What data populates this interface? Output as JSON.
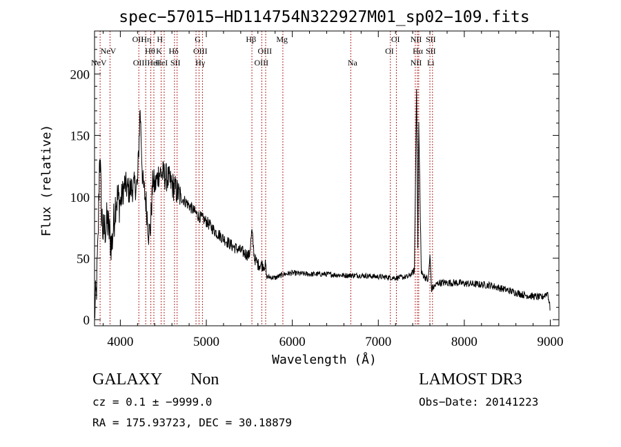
{
  "chart_data": {
    "type": "line",
    "title": "spec−57015−HD114754N322927M01_sp02−109.fits",
    "xlabel": "Wavelength (Å)",
    "ylabel": "Flux (relative)",
    "xlim": [
      3700,
      9100
    ],
    "ylim": [
      -5,
      235
    ],
    "xticks": [
      4000,
      5000,
      6000,
      7000,
      8000,
      9000
    ],
    "yticks": [
      0,
      50,
      100,
      150,
      200
    ],
    "colors": {
      "spectrum": "#000000",
      "lines": "#b22222",
      "frame": "#000000"
    },
    "spectral_lines": [
      {
        "label": "NeV",
        "wavelength": 3750,
        "row": 3
      },
      {
        "label": "NeV",
        "wavelength": 3860,
        "row": 2
      },
      {
        "label": "OII",
        "wavelength": 4205,
        "row": 1
      },
      {
        "label": "OIII",
        "wavelength": 4230,
        "row": 4
      },
      {
        "label": "Hη",
        "wavelength": 4300,
        "row": 1
      },
      {
        "label": "Hθ",
        "wavelength": 4345,
        "row": 2
      },
      {
        "label": "HeI",
        "wavelength": 4385,
        "row": 4
      },
      {
        "label": "H",
        "wavelength": 4460,
        "row": 1
      },
      {
        "label": "K",
        "wavelength": 4450,
        "row": 2
      },
      {
        "label": "HeI",
        "wavelength": 4480,
        "row": 4
      },
      {
        "label": "Hδ",
        "wavelength": 4620,
        "row": 2
      },
      {
        "label": "SII",
        "wavelength": 4640,
        "row": 4
      },
      {
        "label": "G",
        "wavelength": 4900,
        "row": 1
      },
      {
        "label": "OIII",
        "wavelength": 4930,
        "row": 2
      },
      {
        "label": "Hγ",
        "wavelength": 4930,
        "row": 4
      },
      {
        "label": "Hβ",
        "wavelength": 5520,
        "row": 1
      },
      {
        "label": "OIII",
        "wavelength": 5680,
        "row": 2
      },
      {
        "label": "OIII",
        "wavelength": 5640,
        "row": 4
      },
      {
        "label": "Mg",
        "wavelength": 5880,
        "row": 1
      },
      {
        "label": "Na",
        "wavelength": 6700,
        "row": 4
      },
      {
        "label": "OI",
        "wavelength": 7200,
        "row": 1
      },
      {
        "label": "OI",
        "wavelength": 7130,
        "row": 2
      },
      {
        "label": "NII",
        "wavelength": 7440,
        "row": 1
      },
      {
        "label": "Hα",
        "wavelength": 7460,
        "row": 2
      },
      {
        "label": "NII",
        "wavelength": 7440,
        "row": 4
      },
      {
        "label": "SII",
        "wavelength": 7610,
        "row": 1
      },
      {
        "label": "SII",
        "wavelength": 7610,
        "row": 2
      },
      {
        "label": "Li",
        "wavelength": 7610,
        "row": 4
      }
    ],
    "line_wavelengths": [
      3765,
      3880,
      4215,
      4295,
      4355,
      4390,
      4475,
      4510,
      4630,
      4660,
      4880,
      4915,
      4955,
      5530,
      5645,
      5690,
      5890,
      6680,
      7140,
      7210,
      7430,
      7455,
      7470,
      7600,
      7630
    ],
    "spectrum_anchors": [
      [
        3700,
        5
      ],
      [
        3720,
        20
      ],
      [
        3740,
        60
      ],
      [
        3760,
        140
      ],
      [
        3780,
        90
      ],
      [
        3800,
        70
      ],
      [
        3850,
        80
      ],
      [
        3900,
        60
      ],
      [
        3950,
        100
      ],
      [
        4000,
        95
      ],
      [
        4050,
        110
      ],
      [
        4100,
        105
      ],
      [
        4150,
        108
      ],
      [
        4200,
        110
      ],
      [
        4230,
        172
      ],
      [
        4260,
        112
      ],
      [
        4300,
        95
      ],
      [
        4330,
        70
      ],
      [
        4350,
        75
      ],
      [
        4380,
        115
      ],
      [
        4400,
        108
      ],
      [
        4450,
        120
      ],
      [
        4500,
        118
      ],
      [
        4550,
        115
      ],
      [
        4600,
        110
      ],
      [
        4650,
        105
      ],
      [
        4700,
        100
      ],
      [
        4800,
        93
      ],
      [
        4900,
        85
      ],
      [
        5000,
        80
      ],
      [
        5100,
        72
      ],
      [
        5200,
        66
      ],
      [
        5300,
        60
      ],
      [
        5400,
        56
      ],
      [
        5500,
        52
      ],
      [
        5530,
        72
      ],
      [
        5560,
        50
      ],
      [
        5600,
        45
      ],
      [
        5690,
        44
      ],
      [
        5700,
        35
      ],
      [
        5800,
        34
      ],
      [
        5900,
        37
      ],
      [
        6000,
        38
      ],
      [
        6200,
        37
      ],
      [
        6400,
        37
      ],
      [
        6600,
        36
      ],
      [
        6800,
        36
      ],
      [
        7000,
        35
      ],
      [
        7200,
        34
      ],
      [
        7350,
        35
      ],
      [
        7420,
        40
      ],
      [
        7445,
        190
      ],
      [
        7460,
        60
      ],
      [
        7470,
        160
      ],
      [
        7500,
        38
      ],
      [
        7580,
        32
      ],
      [
        7600,
        52
      ],
      [
        7620,
        25
      ],
      [
        7700,
        30
      ],
      [
        7900,
        30
      ],
      [
        8100,
        29
      ],
      [
        8300,
        28
      ],
      [
        8500,
        24
      ],
      [
        8700,
        20
      ],
      [
        8900,
        18
      ],
      [
        8970,
        22
      ],
      [
        9000,
        8
      ]
    ]
  },
  "footer": {
    "object_class": "GALAXY",
    "object_subclass": "Non",
    "survey": "LAMOST DR3",
    "redshift_text": "cz = 0.1 ± −9999.0",
    "obs_date_text": "Obs−Date: 20141223",
    "coords_text": "RA = 175.93723, DEC =  30.18879"
  }
}
